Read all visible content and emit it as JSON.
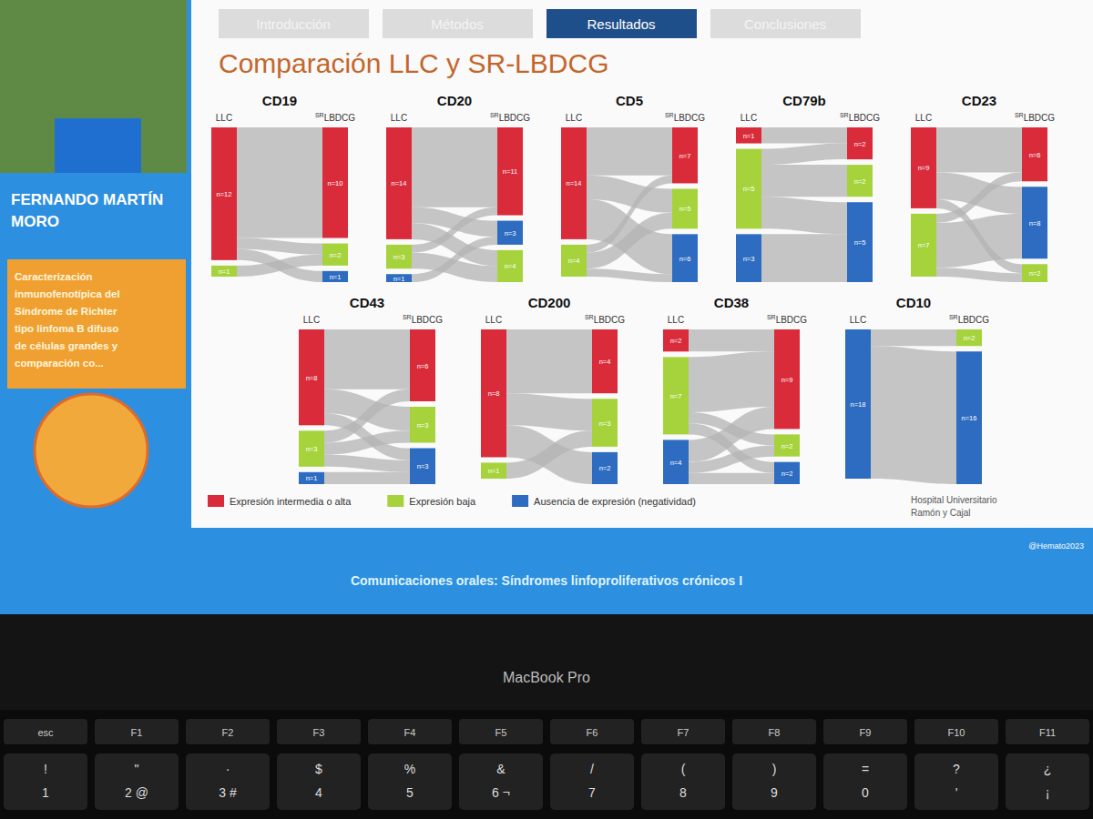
{
  "header": {
    "tabs": [
      {
        "label": "Introducción",
        "active": false
      },
      {
        "label": "Métodos",
        "active": false
      },
      {
        "label": "Resultados",
        "active": true
      },
      {
        "label": "Conclusiones",
        "active": false
      }
    ]
  },
  "title": "Comparación LLC y SR-LBDCG",
  "legend": [
    {
      "name": "Expresión intermedia o alta",
      "color": "#d92b3a"
    },
    {
      "name": "Expresión baja",
      "color": "#a6d33c"
    },
    {
      "name": "Ausencia de expresión (negatividad)",
      "color": "#2d6cc0"
    }
  ],
  "chart_data": [
    {
      "type": "sankey",
      "title": "CD19",
      "left_label": "LLC",
      "right_label_sup": "SR",
      "right_label": "LBDCG",
      "left_nodes": [
        {
          "color": "#d92b3a",
          "value": 12,
          "label": "n=12"
        },
        {
          "color": "#a6d33c",
          "value": 1,
          "label": "n=1"
        }
      ],
      "right_nodes": [
        {
          "color": "#d92b3a",
          "value": 10,
          "label": "n=10"
        },
        {
          "color": "#a6d33c",
          "value": 2,
          "label": "n=2"
        },
        {
          "color": "#2d6cc0",
          "value": 1,
          "label": "n=1"
        }
      ],
      "flows": [
        {
          "from": 0,
          "to": 0,
          "value": 10
        },
        {
          "from": 0,
          "to": 1,
          "value": 1
        },
        {
          "from": 0,
          "to": 2,
          "value": 1
        },
        {
          "from": 1,
          "to": 1,
          "value": 1
        }
      ]
    },
    {
      "type": "sankey",
      "title": "CD20",
      "left_label": "LLC",
      "right_label_sup": "SR",
      "right_label": "LBDCG",
      "left_nodes": [
        {
          "color": "#d92b3a",
          "value": 14,
          "label": "n=14"
        },
        {
          "color": "#a6d33c",
          "value": 3,
          "label": "n=3"
        },
        {
          "color": "#2d6cc0",
          "value": 1,
          "label": "n=1"
        }
      ],
      "right_nodes": [
        {
          "color": "#d92b3a",
          "value": 11,
          "label": "n=11"
        },
        {
          "color": "#2d6cc0",
          "value": 3,
          "label": "n=3"
        },
        {
          "color": "#a6d33c",
          "value": 4,
          "label": "n=4"
        }
      ],
      "flows": [
        {
          "from": 0,
          "to": 0,
          "value": 10
        },
        {
          "from": 0,
          "to": 1,
          "value": 2
        },
        {
          "from": 0,
          "to": 2,
          "value": 2
        },
        {
          "from": 1,
          "to": 0,
          "value": 1
        },
        {
          "from": 1,
          "to": 2,
          "value": 2
        },
        {
          "from": 2,
          "to": 1,
          "value": 1
        }
      ]
    },
    {
      "type": "sankey",
      "title": "CD5",
      "left_label": "LLC",
      "right_label_sup": "SR",
      "right_label": "LBDCG",
      "left_nodes": [
        {
          "color": "#d92b3a",
          "value": 14,
          "label": "n=14"
        },
        {
          "color": "#a6d33c",
          "value": 4,
          "label": "n=4"
        }
      ],
      "right_nodes": [
        {
          "color": "#d92b3a",
          "value": 7,
          "label": "n=7"
        },
        {
          "color": "#a6d33c",
          "value": 5,
          "label": "n=5"
        },
        {
          "color": "#2d6cc0",
          "value": 6,
          "label": "n=6"
        }
      ],
      "flows": [
        {
          "from": 0,
          "to": 0,
          "value": 6
        },
        {
          "from": 0,
          "to": 1,
          "value": 3
        },
        {
          "from": 0,
          "to": 2,
          "value": 5
        },
        {
          "from": 1,
          "to": 0,
          "value": 1
        },
        {
          "from": 1,
          "to": 1,
          "value": 2
        },
        {
          "from": 1,
          "to": 2,
          "value": 1
        }
      ]
    },
    {
      "type": "sankey",
      "title": "CD79b",
      "left_label": "LLC",
      "right_label_sup": "SR",
      "right_label": "LBDCG",
      "left_nodes": [
        {
          "color": "#d92b3a",
          "value": 1,
          "label": "n=1"
        },
        {
          "color": "#a6d33c",
          "value": 5,
          "label": "n=5"
        },
        {
          "color": "#2d6cc0",
          "value": 3,
          "label": "n=3"
        }
      ],
      "right_nodes": [
        {
          "color": "#d92b3a",
          "value": 2,
          "label": "n=2"
        },
        {
          "color": "#a6d33c",
          "value": 2,
          "label": "n=2"
        },
        {
          "color": "#2d6cc0",
          "value": 5,
          "label": "n=5"
        }
      ],
      "flows": [
        {
          "from": 0,
          "to": 0,
          "value": 1
        },
        {
          "from": 1,
          "to": 0,
          "value": 1
        },
        {
          "from": 1,
          "to": 1,
          "value": 2
        },
        {
          "from": 1,
          "to": 2,
          "value": 2
        },
        {
          "from": 2,
          "to": 2,
          "value": 3
        }
      ]
    },
    {
      "type": "sankey",
      "title": "CD23",
      "left_label": "LLC",
      "right_label_sup": "SR",
      "right_label": "LBDCG",
      "left_nodes": [
        {
          "color": "#d92b3a",
          "value": 9,
          "label": "n=9"
        },
        {
          "color": "#a6d33c",
          "value": 7,
          "label": "n=7"
        }
      ],
      "right_nodes": [
        {
          "color": "#d92b3a",
          "value": 6,
          "label": "n=6"
        },
        {
          "color": "#2d6cc0",
          "value": 8,
          "label": "n=8"
        },
        {
          "color": "#a6d33c",
          "value": 2,
          "label": "n=2"
        }
      ],
      "flows": [
        {
          "from": 0,
          "to": 0,
          "value": 5
        },
        {
          "from": 0,
          "to": 1,
          "value": 3
        },
        {
          "from": 0,
          "to": 2,
          "value": 1
        },
        {
          "from": 1,
          "to": 0,
          "value": 1
        },
        {
          "from": 1,
          "to": 1,
          "value": 5
        },
        {
          "from": 1,
          "to": 2,
          "value": 1
        }
      ]
    },
    {
      "type": "sankey",
      "title": "CD43",
      "left_label": "LLC",
      "right_label_sup": "SR",
      "right_label": "LBDCG",
      "left_nodes": [
        {
          "color": "#d92b3a",
          "value": 8,
          "label": "n=8"
        },
        {
          "color": "#a6d33c",
          "value": 3,
          "label": "n=3"
        },
        {
          "color": "#2d6cc0",
          "value": 1,
          "label": "n=1"
        }
      ],
      "right_nodes": [
        {
          "color": "#d92b3a",
          "value": 6,
          "label": "n=6"
        },
        {
          "color": "#a6d33c",
          "value": 3,
          "label": "n=3"
        },
        {
          "color": "#2d6cc0",
          "value": 3,
          "label": "n=3"
        }
      ],
      "flows": [
        {
          "from": 0,
          "to": 0,
          "value": 5
        },
        {
          "from": 0,
          "to": 1,
          "value": 2
        },
        {
          "from": 0,
          "to": 2,
          "value": 1
        },
        {
          "from": 1,
          "to": 0,
          "value": 1
        },
        {
          "from": 1,
          "to": 1,
          "value": 1
        },
        {
          "from": 1,
          "to": 2,
          "value": 1
        },
        {
          "from": 2,
          "to": 2,
          "value": 1
        }
      ]
    },
    {
      "type": "sankey",
      "title": "CD200",
      "left_label": "LLC",
      "right_label_sup": "SR",
      "right_label": "LBDCG",
      "left_nodes": [
        {
          "color": "#d92b3a",
          "value": 8,
          "label": "n=8"
        },
        {
          "color": "#a6d33c",
          "value": 1,
          "label": "n=1"
        }
      ],
      "right_nodes": [
        {
          "color": "#d92b3a",
          "value": 4,
          "label": "n=4"
        },
        {
          "color": "#a6d33c",
          "value": 3,
          "label": "n=3"
        },
        {
          "color": "#2d6cc0",
          "value": 2,
          "label": "n=2"
        }
      ],
      "flows": [
        {
          "from": 0,
          "to": 0,
          "value": 4
        },
        {
          "from": 0,
          "to": 1,
          "value": 2
        },
        {
          "from": 0,
          "to": 2,
          "value": 2
        },
        {
          "from": 1,
          "to": 1,
          "value": 1
        }
      ]
    },
    {
      "type": "sankey",
      "title": "CD38",
      "left_label": "LLC",
      "right_label_sup": "SR",
      "right_label": "LBDCG",
      "left_nodes": [
        {
          "color": "#d92b3a",
          "value": 2,
          "label": "n=2"
        },
        {
          "color": "#a6d33c",
          "value": 7,
          "label": "n=7"
        },
        {
          "color": "#2d6cc0",
          "value": 4,
          "label": "n=4"
        }
      ],
      "right_nodes": [
        {
          "color": "#d92b3a",
          "value": 9,
          "label": "n=9"
        },
        {
          "color": "#a6d33c",
          "value": 2,
          "label": "n=2"
        },
        {
          "color": "#2d6cc0",
          "value": 2,
          "label": "n=2"
        }
      ],
      "flows": [
        {
          "from": 0,
          "to": 0,
          "value": 2
        },
        {
          "from": 1,
          "to": 0,
          "value": 5
        },
        {
          "from": 1,
          "to": 1,
          "value": 1
        },
        {
          "from": 1,
          "to": 2,
          "value": 1
        },
        {
          "from": 2,
          "to": 0,
          "value": 2
        },
        {
          "from": 2,
          "to": 1,
          "value": 1
        },
        {
          "from": 2,
          "to": 2,
          "value": 1
        }
      ]
    },
    {
      "type": "sankey",
      "title": "CD10",
      "left_label": "LLC",
      "right_label_sup": "SR",
      "right_label": "LBDCG",
      "left_nodes": [
        {
          "color": "#2d6cc0",
          "value": 18,
          "label": "n=18"
        }
      ],
      "right_nodes": [
        {
          "color": "#a6d33c",
          "value": 2,
          "label": "n=2"
        },
        {
          "color": "#2d6cc0",
          "value": 16,
          "label": "n=16"
        }
      ],
      "flows": [
        {
          "from": 0,
          "to": 0,
          "value": 2
        },
        {
          "from": 0,
          "to": 1,
          "value": 16
        }
      ]
    }
  ],
  "sidebar": {
    "speaker": [
      "FERNANDO MARTÍN",
      "MORO"
    ],
    "talk": [
      "Caracterización",
      "inmunofenotípica del",
      "Síndrome de Richter",
      "tipo linfoma B difuso",
      "de células grandes y",
      "comparación co..."
    ]
  },
  "logos": [
    "Hospital Universitario",
    "Ramón y Cajal"
  ],
  "hashtag": "@Hemato2023",
  "footer": "Comunicaciones orales: Síndromes linfoproliferativos crónicos I",
  "device": "MacBook Pro",
  "keyboard": {
    "function_row": [
      "esc",
      "F1",
      "F2",
      "F3",
      "F4",
      "F5",
      "F6",
      "F7",
      "F8",
      "F9",
      "F10",
      "F11"
    ],
    "number_row": [
      {
        "upper": "!",
        "lower": "1"
      },
      {
        "upper": "\"",
        "lower": "2 @"
      },
      {
        "upper": "·",
        "lower": "3 #"
      },
      {
        "upper": "$",
        "lower": "4"
      },
      {
        "upper": "%",
        "lower": "5"
      },
      {
        "upper": "&",
        "lower": "6 ¬"
      },
      {
        "upper": "/",
        "lower": "7"
      },
      {
        "upper": "(",
        "lower": "8"
      },
      {
        "upper": ")",
        "lower": "9"
      },
      {
        "upper": "=",
        "lower": "0"
      },
      {
        "upper": "?",
        "lower": "'"
      },
      {
        "upper": "¿",
        "lower": "¡"
      }
    ]
  }
}
